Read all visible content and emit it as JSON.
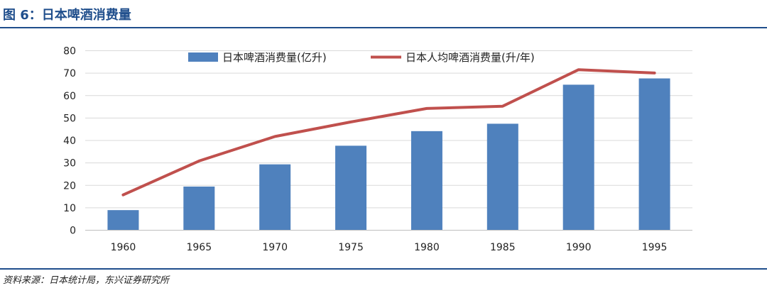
{
  "figure": {
    "title": "图 6：日本啤酒消费量",
    "source": "资料来源：日本统计局，东兴证券研究所"
  },
  "chart_data": {
    "type": "bar",
    "title": "",
    "xlabel": "",
    "ylabel": "",
    "categories": [
      "1960",
      "1965",
      "1970",
      "1975",
      "1980",
      "1985",
      "1990",
      "1995"
    ],
    "ylim": [
      0,
      80
    ],
    "yticks": [
      0,
      10,
      20,
      30,
      40,
      50,
      60,
      70,
      80
    ],
    "grid": true,
    "legend_position": "top",
    "series": [
      {
        "name": "日本啤酒消费量(亿升)",
        "type": "bar",
        "color": "#4f81bd",
        "values": [
          8.8,
          19.3,
          29.2,
          37.5,
          44,
          47.3,
          64.7,
          67.5
        ]
      },
      {
        "name": "日本人均啤酒消费量(升/年)",
        "type": "line",
        "color": "#c0504d",
        "values": [
          15.6,
          30.7,
          41.6,
          48.1,
          54.1,
          55.1,
          71.4,
          69.9
        ]
      }
    ]
  }
}
